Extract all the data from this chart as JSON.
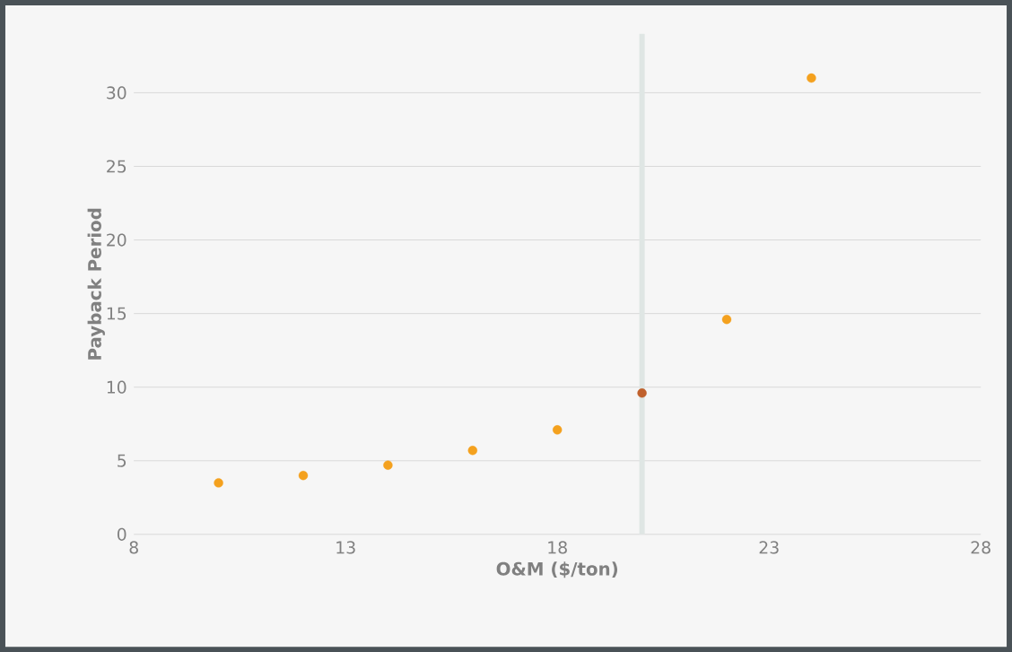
{
  "chart_data": {
    "type": "scatter",
    "xlabel": "O&M ($/ton)",
    "ylabel": "Payback Period",
    "x": [
      10,
      12,
      14,
      16,
      18,
      20,
      22,
      24
    ],
    "values": [
      3.5,
      4.0,
      4.7,
      5.7,
      7.1,
      9.6,
      14.6,
      31.0
    ],
    "colors": [
      "#f4a11e",
      "#f4a11e",
      "#f4a11e",
      "#f4a11e",
      "#f4a11e",
      "#c0602c",
      "#f4a11e",
      "#f4a11e"
    ],
    "xlim": [
      8,
      28
    ],
    "ylim": [
      0,
      34
    ],
    "xticks": [
      8,
      13,
      18,
      23,
      28
    ],
    "yticks": [
      0,
      5,
      10,
      15,
      20,
      25,
      30
    ],
    "grid": "y",
    "marker": "circle",
    "ref_lines": [
      {
        "axis": "x",
        "value": 20,
        "color": "#dfe6e4"
      }
    ]
  }
}
